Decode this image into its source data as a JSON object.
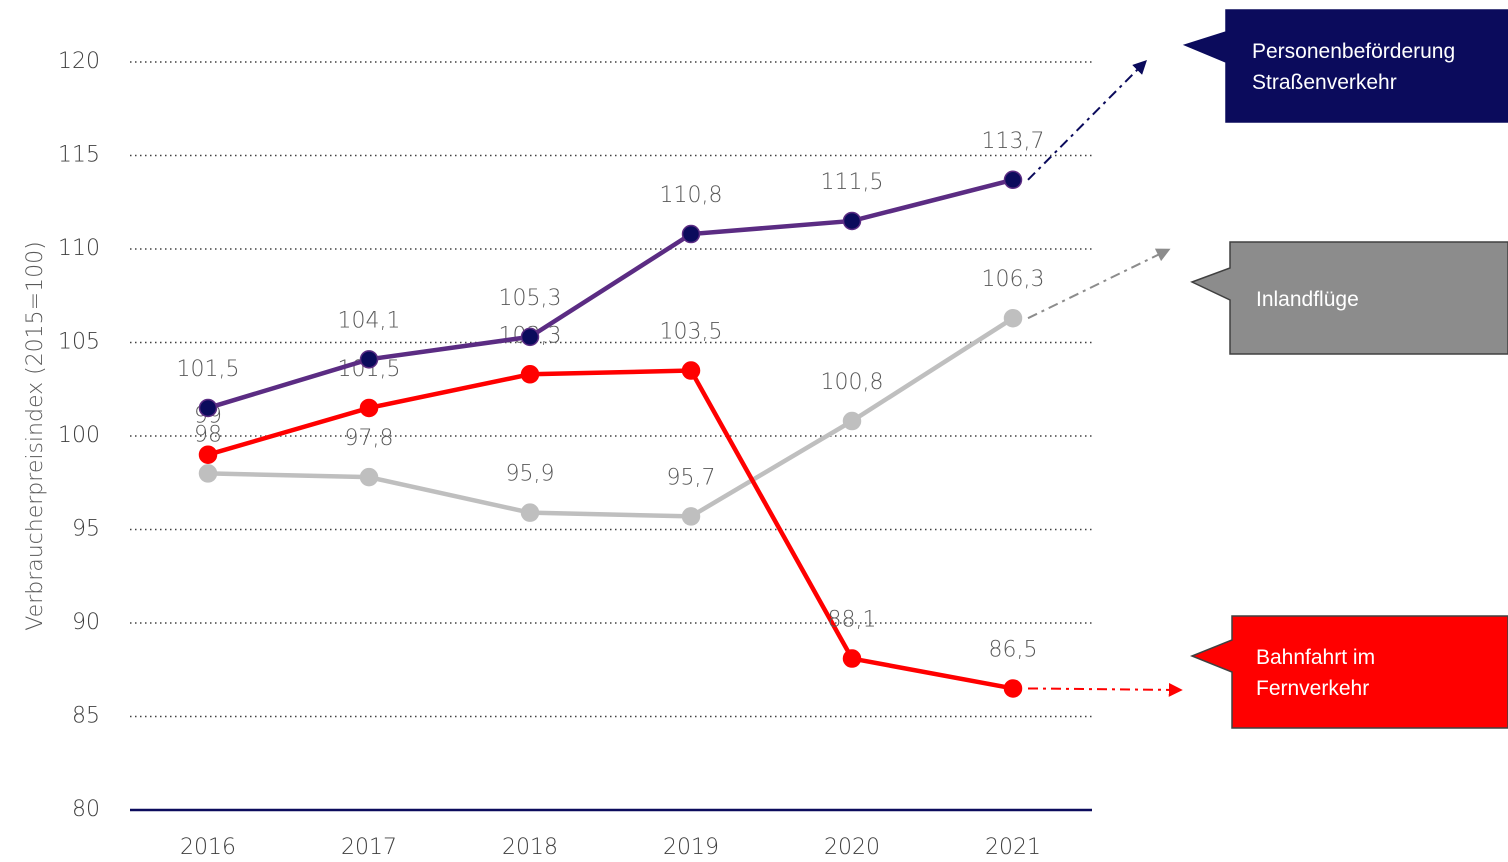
{
  "chart_data": {
    "type": "line",
    "y_label": "Verbraucherpreisindex (2015=100)",
    "categories": [
      "2016",
      "2017",
      "2018",
      "2019",
      "2020",
      "2021"
    ],
    "ylim": [
      80,
      120
    ],
    "yticks": [
      80,
      85,
      90,
      95,
      100,
      105,
      110,
      115,
      120
    ],
    "grid": true,
    "series": [
      {
        "name": "Inlandflüge",
        "color": "#bfbfbf",
        "marker_color": "#bfbfbf",
        "box_color": "#8c8c8c",
        "values": [
          98,
          97.8,
          95.9,
          95.7,
          100.8,
          106.3
        ],
        "value_labels": [
          "98",
          "97,8",
          "95,9",
          "95,7",
          "100,8",
          "106,3"
        ]
      },
      {
        "name": "Bahnfahrt im Fernverkehr",
        "color": "#ff0000",
        "marker_color": "#ff0000",
        "box_color": "#ff0000",
        "values": [
          99,
          101.5,
          103.3,
          103.5,
          88.1,
          86.5
        ],
        "value_labels": [
          "99",
          "101,5",
          "103,3",
          "103,5",
          "88,1",
          "86,5"
        ]
      },
      {
        "name": "Personenbeförderung Straßenverkehr",
        "color": "#5b2c83",
        "marker_color": "#0b0b5c",
        "box_color": "#0b0b5c",
        "values": [
          101.5,
          104.1,
          105.3,
          110.8,
          111.5,
          113.7
        ],
        "value_labels": [
          "101,5",
          "104,1",
          "105,3",
          "110,8",
          "111,5",
          "113,7"
        ]
      }
    ]
  }
}
